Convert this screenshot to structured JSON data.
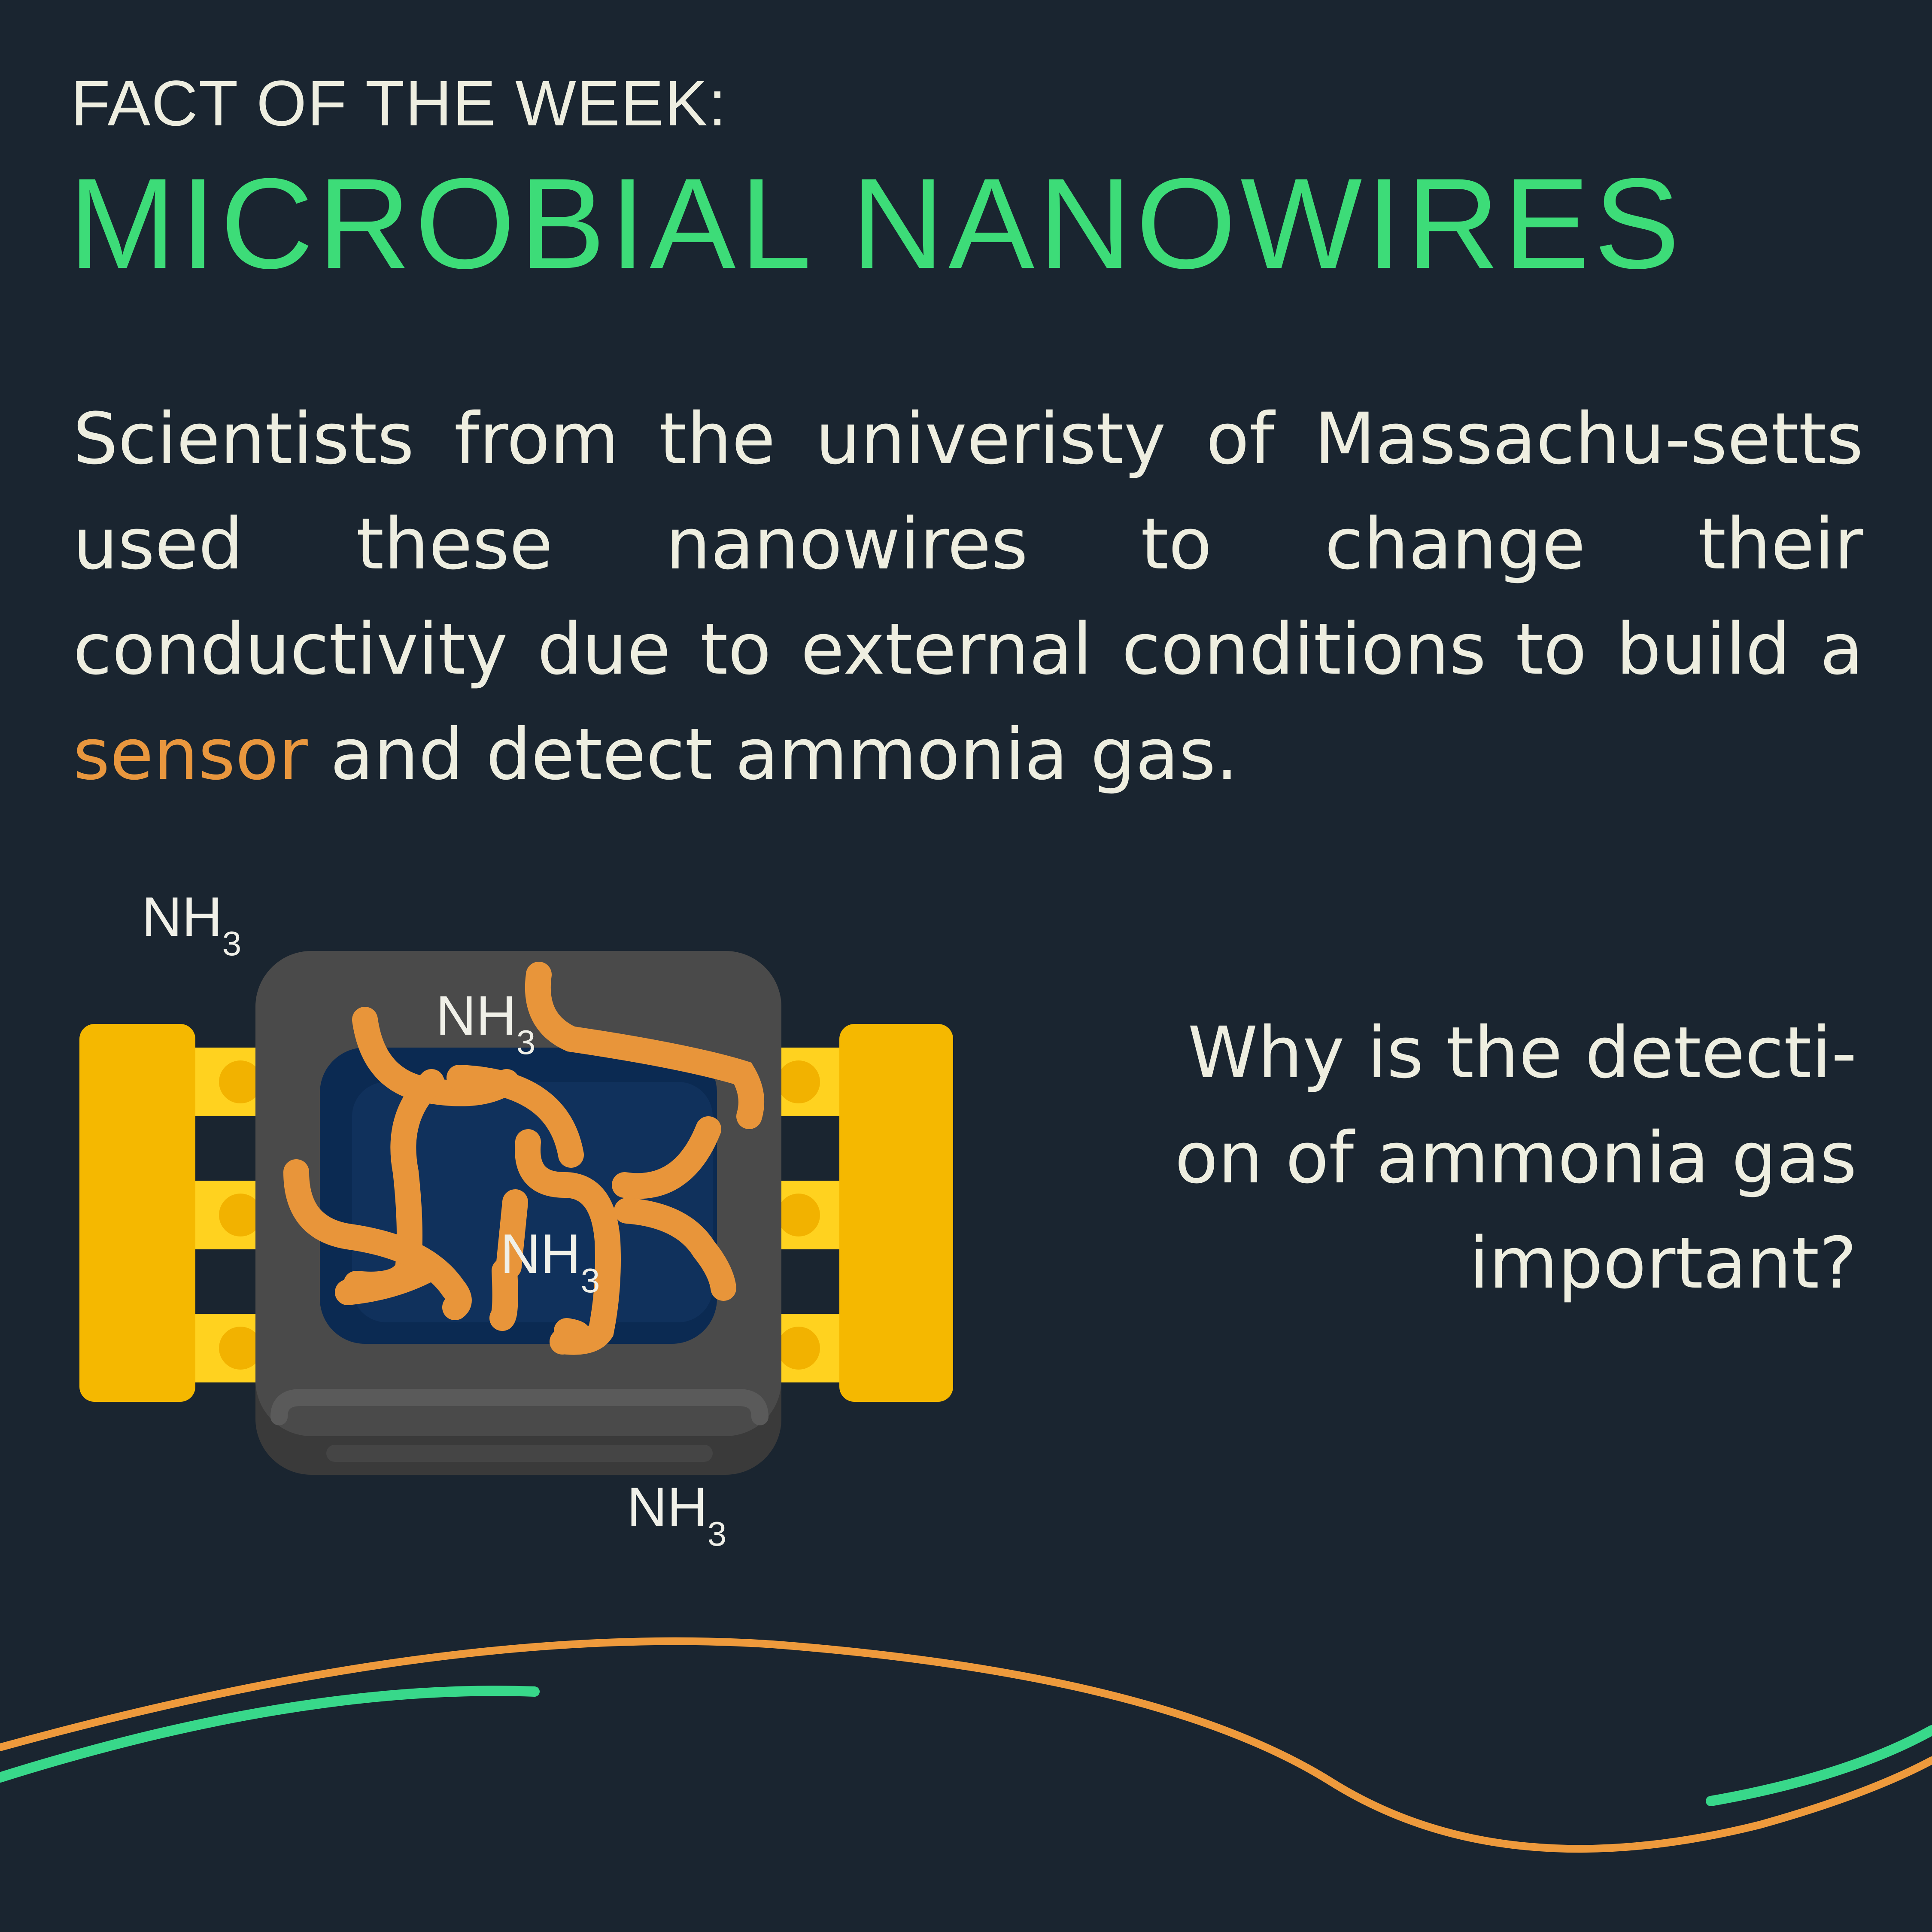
{
  "header": {
    "kicker": "FACT OF THE WEEK:",
    "title": "MICROBIAL NANOWIRES"
  },
  "paragraph": {
    "before": "Scientists from the univeristy of Massachu-setts used these nanowires to change their conductivity due to external conditions to build a ",
    "highlight": "sensor",
    "after": " and detect ammonia gas."
  },
  "question": {
    "line1": "Why is the detecti-",
    "line2": "on of ammonia gas",
    "line3": "important?"
  },
  "labels": {
    "nh3_main": "NH",
    "nh3_sub": "3"
  },
  "colors": {
    "background": "#1a2530",
    "title_green": "#3ddc78",
    "highlight_orange": "#e9973e",
    "text_cream": "#eeeee0",
    "chip_gray": "#4a4a4a",
    "chip_screen": "#0f2a4e",
    "pin_yellow": "#f5b800",
    "nanowire_orange": "#e8953a"
  },
  "icons": [
    "sensor-chip-icon",
    "nanowire-icon",
    "wave-decoration"
  ]
}
